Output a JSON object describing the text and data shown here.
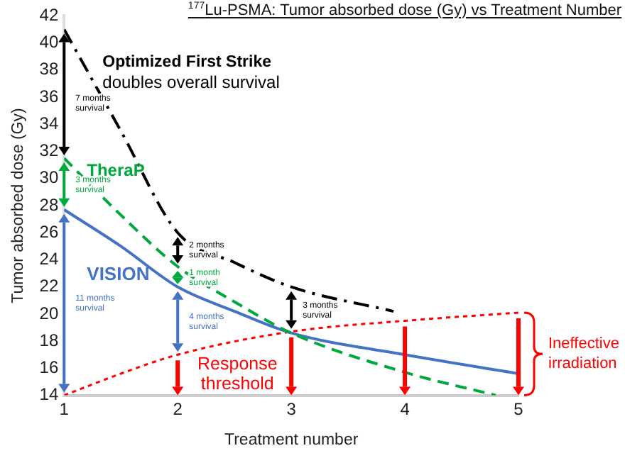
{
  "chart_data": {
    "type": "line",
    "title": "$^{177}$Lu-PSMA: Tumor absorbed dose (Gy) vs Treatment Number",
    "xlabel": "Treatment number",
    "ylabel": "Tumor absorbed dose (Gy)",
    "xlim": [
      1,
      5
    ],
    "xticks": [
      1,
      2,
      3,
      4,
      5
    ],
    "ylim": [
      14,
      42
    ],
    "yticks": [
      14,
      16,
      18,
      20,
      22,
      24,
      26,
      28,
      30,
      32,
      34,
      36,
      38,
      40,
      42
    ],
    "grid": false,
    "legend": "left",
    "marker": "none",
    "series": [
      {
        "name": "Optimized First Strike",
        "color": "#000000",
        "line_style": "dashdot",
        "x": [
          1,
          1.5,
          2,
          2.5,
          3,
          3.9
        ],
        "values": [
          41,
          33.5,
          26,
          23.8,
          22,
          20.2
        ]
      },
      {
        "name": "TheraP",
        "color": "#00a93e",
        "line_style": "dashed",
        "x": [
          1,
          1.5,
          2,
          2.5,
          3,
          4,
          4.8
        ],
        "values": [
          31.5,
          27.3,
          23.5,
          20.9,
          18.6,
          15.7,
          14
        ]
      },
      {
        "name": "VISION",
        "color": "#4472c4",
        "line_style": "solid",
        "x": [
          1,
          1.5,
          2,
          2.5,
          3,
          4,
          5
        ],
        "values": [
          27.7,
          25,
          22,
          20.2,
          18.6,
          17,
          15.6
        ]
      },
      {
        "name": "Response threshold",
        "color": "#ff0000",
        "line_style": "dotted",
        "x": [
          1,
          1.5,
          2,
          3,
          4,
          5
        ],
        "values": [
          14,
          15.6,
          17,
          18.7,
          19.5,
          20.1
        ]
      }
    ],
    "annotations": [
      "doubles overall survival",
      "Ineffective irradiation",
      "7 months survival",
      "3 months survival",
      "11 months survival",
      "2 months survival",
      "1 month survival",
      "4 months survival",
      "3 months survival"
    ]
  }
}
